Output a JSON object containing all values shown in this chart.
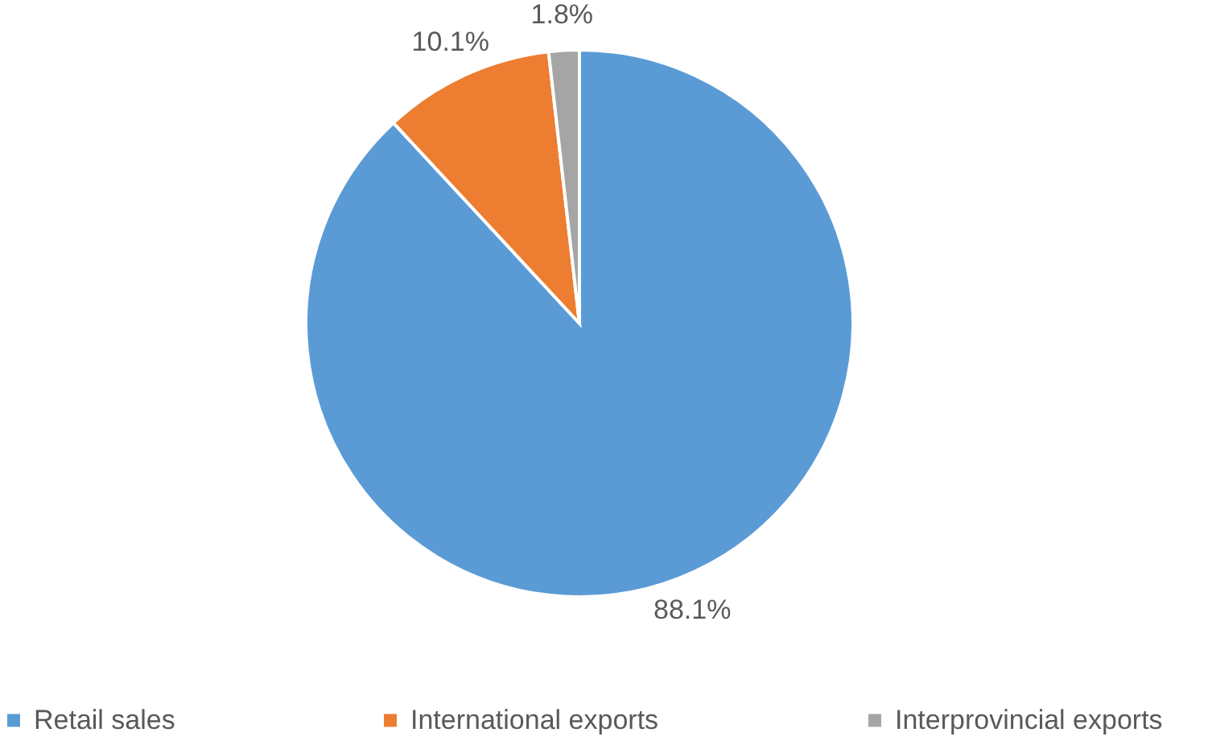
{
  "chart_data": {
    "type": "pie",
    "categories": [
      "Retail sales",
      "International exports",
      "Interprovincial exports"
    ],
    "values": [
      88.1,
      10.1,
      1.8
    ],
    "colors": [
      "#5b9bd5",
      "#ed7d31",
      "#a5a5a5"
    ],
    "value_labels": [
      "88.1%",
      "10.1%",
      "1.8%"
    ],
    "legend": "bottom"
  }
}
